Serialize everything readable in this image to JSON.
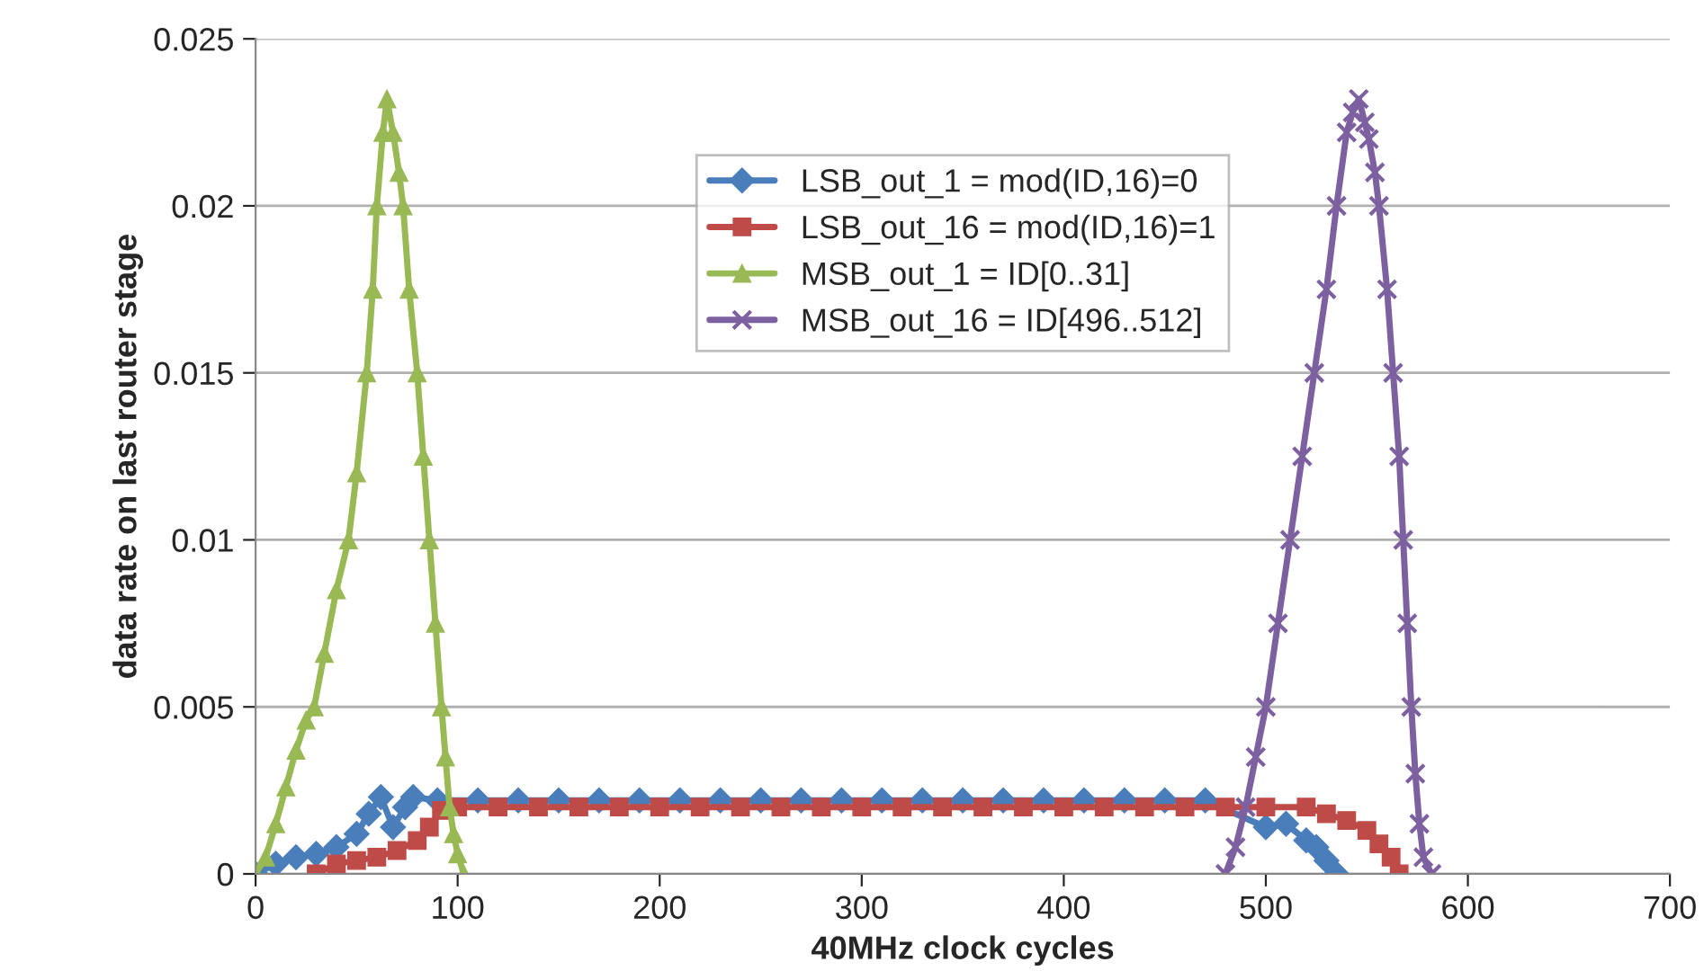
{
  "chart_data": {
    "type": "line",
    "xlabel": "40MHz clock cycles",
    "ylabel": "data rate on last router stage",
    "xlim": [
      0,
      700
    ],
    "xticks": [
      0,
      100,
      200,
      300,
      400,
      500,
      600,
      700
    ],
    "ylim": [
      0,
      0.025
    ],
    "yticks": [
      0,
      0.005,
      0.01,
      0.015,
      0.02,
      0.025
    ],
    "grid": "y",
    "legend": "top",
    "line_style": "solid",
    "series": [
      {
        "name": "LSB_out_1 = mod(ID,16)=0",
        "color": "#4a7ebb",
        "marker": "diamond",
        "x": [
          0,
          10,
          20,
          30,
          40,
          50,
          56,
          62,
          68,
          74,
          78,
          90,
          110,
          130,
          150,
          170,
          190,
          210,
          230,
          250,
          270,
          290,
          310,
          330,
          350,
          370,
          390,
          410,
          430,
          450,
          470,
          500,
          510,
          520,
          525,
          530,
          535
        ],
        "values": [
          0,
          0.0003,
          0.0005,
          0.0006,
          0.0008,
          0.0012,
          0.0018,
          0.0023,
          0.0014,
          0.002,
          0.0023,
          0.0022,
          0.0022,
          0.0022,
          0.0022,
          0.0022,
          0.0022,
          0.0022,
          0.0022,
          0.0022,
          0.0022,
          0.0022,
          0.0022,
          0.0022,
          0.0022,
          0.0022,
          0.0022,
          0.0022,
          0.0022,
          0.0022,
          0.0022,
          0.0014,
          0.0015,
          0.001,
          0.0008,
          0.0004,
          0
        ]
      },
      {
        "name": "LSB_out_16 = mod(ID,16)=1",
        "color": "#be4b48",
        "marker": "square",
        "x": [
          30,
          40,
          50,
          60,
          70,
          80,
          86,
          92,
          100,
          120,
          140,
          160,
          180,
          200,
          220,
          240,
          260,
          280,
          300,
          320,
          340,
          360,
          380,
          400,
          420,
          440,
          460,
          480,
          500,
          520,
          530,
          540,
          550,
          556,
          562,
          566
        ],
        "values": [
          0,
          0.0003,
          0.0004,
          0.0005,
          0.0007,
          0.001,
          0.0014,
          0.0019,
          0.002,
          0.002,
          0.002,
          0.002,
          0.002,
          0.002,
          0.002,
          0.002,
          0.002,
          0.002,
          0.002,
          0.002,
          0.002,
          0.002,
          0.002,
          0.002,
          0.002,
          0.002,
          0.002,
          0.002,
          0.002,
          0.002,
          0.0018,
          0.0016,
          0.0013,
          0.0009,
          0.0005,
          0
        ]
      },
      {
        "name": "MSB_out_1 = ID[0..31]",
        "color": "#98b954",
        "marker": "triangle",
        "x": [
          0,
          5,
          10,
          15,
          20,
          25,
          29,
          34,
          40,
          46,
          50,
          55,
          58,
          60,
          63,
          65,
          68,
          71,
          73,
          76,
          80,
          83,
          86,
          89,
          92,
          94,
          96,
          98,
          100,
          103
        ],
        "values": [
          0,
          0.0005,
          0.0015,
          0.0026,
          0.0037,
          0.0046,
          0.005,
          0.0066,
          0.0085,
          0.01,
          0.012,
          0.015,
          0.0175,
          0.02,
          0.0222,
          0.0232,
          0.0222,
          0.021,
          0.02,
          0.0175,
          0.015,
          0.0125,
          0.01,
          0.0075,
          0.005,
          0.0035,
          0.002,
          0.0012,
          0.0006,
          0
        ]
      },
      {
        "name": "MSB_out_16 = ID[496..512]",
        "color": "#7d60a0",
        "marker": "cross",
        "x": [
          480,
          485,
          490,
          495,
          500,
          506,
          512,
          518,
          524,
          530,
          535,
          540,
          543,
          546,
          549,
          551,
          554,
          556,
          560,
          563,
          566,
          568,
          570,
          572,
          574,
          576,
          578,
          582
        ],
        "values": [
          0,
          0.0008,
          0.002,
          0.0035,
          0.005,
          0.0075,
          0.01,
          0.0125,
          0.015,
          0.0175,
          0.02,
          0.0222,
          0.0228,
          0.0232,
          0.0225,
          0.022,
          0.021,
          0.02,
          0.0175,
          0.015,
          0.0125,
          0.01,
          0.0075,
          0.005,
          0.003,
          0.0015,
          0.0005,
          0
        ]
      }
    ]
  }
}
